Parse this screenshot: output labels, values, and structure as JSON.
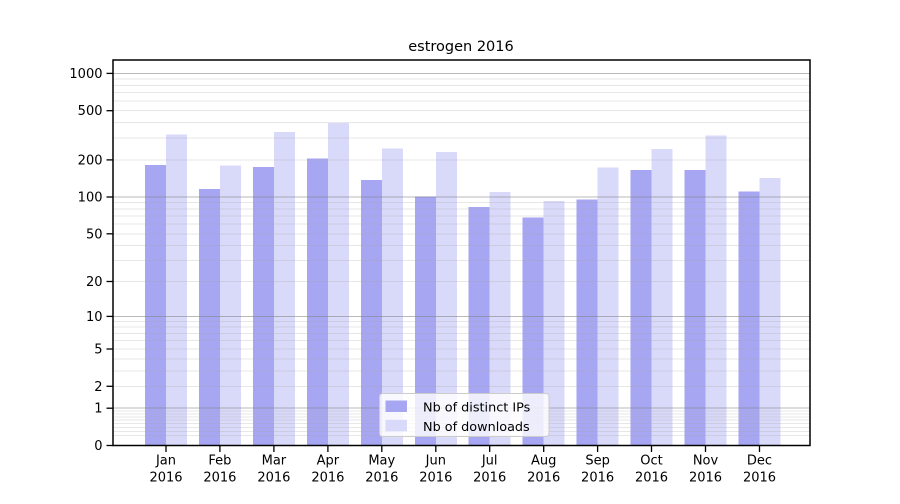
{
  "chart_data": {
    "type": "bar",
    "title": "estrogen 2016",
    "categories": [
      "Jan 2016",
      "Feb 2016",
      "Mar 2016",
      "Apr 2016",
      "May 2016",
      "Jun 2016",
      "Jul 2016",
      "Aug 2016",
      "Sep 2016",
      "Oct 2016",
      "Nov 2016",
      "Dec 2016"
    ],
    "series": [
      {
        "name": "Nb of distinct IPs",
        "color": "#a6a6f2",
        "values": [
          182,
          116,
          175,
          206,
          137,
          101,
          83,
          68,
          95,
          166,
          166,
          111
        ]
      },
      {
        "name": "Nb of downloads",
        "color": "#d9d9f9",
        "values": [
          322,
          181,
          336,
          396,
          248,
          231,
          110,
          93,
          174,
          244,
          316,
          143
        ]
      }
    ],
    "xlabel": "",
    "ylabel": "",
    "yscale": "log10(1+x)",
    "y_tick_values": [
      0,
      1,
      2,
      5,
      10,
      20,
      50,
      100,
      200,
      500,
      1000
    ],
    "y_tick_labels": [
      "0",
      "1",
      "2",
      "5",
      "10",
      "20",
      "50",
      "100",
      "200",
      "500",
      "1000"
    ],
    "ylim": [
      0,
      1270
    ],
    "grid": "horizontal major+minor, drawn over bars",
    "legend_position": "lower center inside plot",
    "style": {
      "grid_major_color": "#808080",
      "grid_minor_color": "#aaaaaa",
      "axis_color": "#000000",
      "legend_border_color": "#cccccc",
      "background": "#ffffff"
    }
  }
}
